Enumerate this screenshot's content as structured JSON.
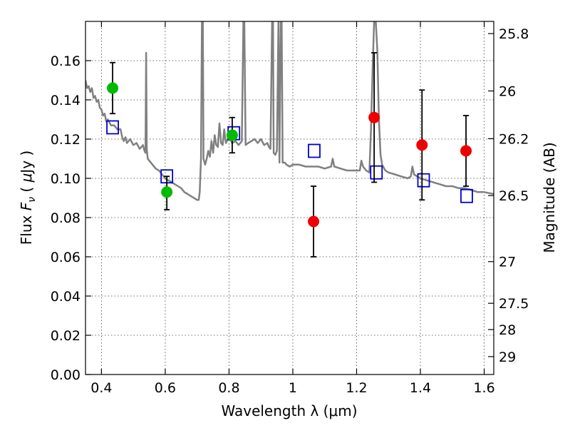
{
  "chart_data": {
    "type": "scatter",
    "xlabel": "Wavelength  λ (μm)",
    "ylabel": "Flux  F_ν  ( μJy )",
    "y2label": "Magnitude (AB)",
    "xlim": [
      0.35,
      1.63
    ],
    "ylim": [
      0.0,
      0.18
    ],
    "x_ticks": [
      0.4,
      0.6,
      0.8,
      1.0,
      1.2,
      1.4,
      1.6
    ],
    "x_tick_labels": [
      "0.4",
      "0.6",
      "0.8",
      "1",
      "1.2",
      "1.4",
      "1.6"
    ],
    "y_ticks": [
      0.0,
      0.02,
      0.04,
      0.06,
      0.08,
      0.1,
      0.12,
      0.14,
      0.16
    ],
    "y_tick_labels": [
      "0.00",
      "0.02",
      "0.04",
      "0.06",
      "0.08",
      "0.10",
      "0.12",
      "0.14",
      "0.16"
    ],
    "y2_ticks": [
      25.8,
      26,
      26.2,
      26.5,
      27,
      27.5,
      28,
      29
    ],
    "y2_tick_labels": [
      "25.8",
      "26",
      "26.2",
      "26.5",
      "27",
      "27.5",
      "28",
      "29"
    ],
    "grid": true,
    "colors": {
      "spectrum": "#808080",
      "model_box": "#0000cc",
      "optical_obs": "#00bb00",
      "nir_obs": "#ee0000",
      "errorbar": "#000000"
    },
    "series": [
      {
        "kind": "line",
        "color": "#808080",
        "points": [
          [
            0.35,
            0.15
          ],
          [
            0.355,
            0.146
          ],
          [
            0.36,
            0.147
          ],
          [
            0.365,
            0.144
          ],
          [
            0.37,
            0.146
          ],
          [
            0.375,
            0.141
          ],
          [
            0.38,
            0.142
          ],
          [
            0.385,
            0.139
          ],
          [
            0.39,
            0.14
          ],
          [
            0.395,
            0.136
          ],
          [
            0.4,
            0.135
          ],
          [
            0.405,
            0.132
          ],
          [
            0.41,
            0.133
          ],
          [
            0.415,
            0.129
          ],
          [
            0.42,
            0.13
          ],
          [
            0.43,
            0.127
          ],
          [
            0.44,
            0.127
          ],
          [
            0.45,
            0.125
          ],
          [
            0.46,
            0.125
          ],
          [
            0.465,
            0.121
          ],
          [
            0.47,
            0.119
          ],
          [
            0.475,
            0.121
          ],
          [
            0.48,
            0.118
          ],
          [
            0.49,
            0.12
          ],
          [
            0.5,
            0.117
          ],
          [
            0.51,
            0.118
          ],
          [
            0.52,
            0.115
          ],
          [
            0.53,
            0.117
          ],
          [
            0.535,
            0.114
          ],
          [
            0.538,
            0.113
          ],
          [
            0.54,
            0.164
          ],
          [
            0.542,
            0.115
          ],
          [
            0.545,
            0.11
          ],
          [
            0.55,
            0.109
          ],
          [
            0.56,
            0.107
          ],
          [
            0.57,
            0.105
          ],
          [
            0.58,
            0.104
          ],
          [
            0.59,
            0.102
          ],
          [
            0.6,
            0.1
          ],
          [
            0.61,
            0.099
          ],
          [
            0.62,
            0.098
          ],
          [
            0.63,
            0.097
          ],
          [
            0.64,
            0.096
          ],
          [
            0.65,
            0.095
          ],
          [
            0.66,
            0.093
          ],
          [
            0.67,
            0.092
          ],
          [
            0.68,
            0.091
          ],
          [
            0.69,
            0.09
          ],
          [
            0.7,
            0.089
          ],
          [
            0.705,
            0.089
          ],
          [
            0.708,
            0.093
          ],
          [
            0.712,
            0.11
          ],
          [
            0.715,
            0.18
          ],
          [
            0.718,
            0.18
          ],
          [
            0.72,
            0.11
          ],
          [
            0.725,
            0.107
          ],
          [
            0.73,
            0.11
          ],
          [
            0.735,
            0.114
          ],
          [
            0.74,
            0.111
          ],
          [
            0.745,
            0.119
          ],
          [
            0.75,
            0.113
          ],
          [
            0.755,
            0.122
          ],
          [
            0.76,
            0.117
          ],
          [
            0.765,
            0.116
          ],
          [
            0.77,
            0.128
          ],
          [
            0.775,
            0.118
          ],
          [
            0.78,
            0.117
          ],
          [
            0.785,
            0.125
          ],
          [
            0.79,
            0.118
          ],
          [
            0.8,
            0.121
          ],
          [
            0.81,
            0.118
          ],
          [
            0.82,
            0.119
          ],
          [
            0.83,
            0.117
          ],
          [
            0.84,
            0.119
          ],
          [
            0.845,
            0.18
          ],
          [
            0.848,
            0.18
          ],
          [
            0.852,
            0.117
          ],
          [
            0.86,
            0.118
          ],
          [
            0.87,
            0.119
          ],
          [
            0.88,
            0.12
          ],
          [
            0.89,
            0.118
          ],
          [
            0.9,
            0.12
          ],
          [
            0.91,
            0.117
          ],
          [
            0.92,
            0.118
          ],
          [
            0.925,
            0.116
          ],
          [
            0.93,
            0.115
          ],
          [
            0.935,
            0.18
          ],
          [
            0.938,
            0.18
          ],
          [
            0.94,
            0.113
          ],
          [
            0.945,
            0.112
          ],
          [
            0.95,
            0.114
          ],
          [
            0.955,
            0.18
          ],
          [
            0.958,
            0.108
          ],
          [
            0.962,
            0.18
          ],
          [
            0.965,
            0.18
          ],
          [
            0.968,
            0.108
          ],
          [
            0.975,
            0.108
          ],
          [
            0.98,
            0.107
          ],
          [
            0.99,
            0.106
          ],
          [
            1.0,
            0.107
          ],
          [
            1.02,
            0.107
          ],
          [
            1.04,
            0.106
          ],
          [
            1.06,
            0.106
          ],
          [
            1.08,
            0.106
          ],
          [
            1.1,
            0.105
          ],
          [
            1.12,
            0.106
          ],
          [
            1.125,
            0.11
          ],
          [
            1.13,
            0.106
          ],
          [
            1.15,
            0.105
          ],
          [
            1.17,
            0.104
          ],
          [
            1.19,
            0.104
          ],
          [
            1.21,
            0.104
          ],
          [
            1.215,
            0.109
          ],
          [
            1.22,
            0.106
          ],
          [
            1.23,
            0.104
          ],
          [
            1.24,
            0.103
          ],
          [
            1.245,
            0.125
          ],
          [
            1.25,
            0.155
          ],
          [
            1.255,
            0.18
          ],
          [
            1.26,
            0.18
          ],
          [
            1.265,
            0.165
          ],
          [
            1.27,
            0.13
          ],
          [
            1.275,
            0.112
          ],
          [
            1.28,
            0.107
          ],
          [
            1.29,
            0.104
          ],
          [
            1.3,
            0.103
          ],
          [
            1.32,
            0.102
          ],
          [
            1.34,
            0.101
          ],
          [
            1.36,
            0.1
          ],
          [
            1.37,
            0.101
          ],
          [
            1.375,
            0.106
          ],
          [
            1.38,
            0.102
          ],
          [
            1.4,
            0.1
          ],
          [
            1.42,
            0.099
          ],
          [
            1.44,
            0.098
          ],
          [
            1.46,
            0.097
          ],
          [
            1.48,
            0.096
          ],
          [
            1.5,
            0.096
          ],
          [
            1.52,
            0.095
          ],
          [
            1.54,
            0.095
          ],
          [
            1.56,
            0.094
          ],
          [
            1.58,
            0.093
          ],
          [
            1.6,
            0.093
          ],
          [
            1.63,
            0.092
          ]
        ]
      },
      {
        "kind": "open-square",
        "color": "#0000cc",
        "x": [
          0.435,
          0.605,
          0.815,
          1.067,
          1.262,
          1.41,
          1.545
        ],
        "y": [
          0.126,
          0.101,
          0.123,
          0.114,
          0.103,
          0.099,
          0.091
        ]
      },
      {
        "kind": "filled-circle-errorbar",
        "color": "#00bb00",
        "x": [
          0.435,
          0.605,
          0.81
        ],
        "y": [
          0.146,
          0.093,
          0.122
        ],
        "yerr_low": [
          0.133,
          0.084,
          0.113
        ],
        "yerr_high": [
          0.159,
          0.101,
          0.131
        ]
      },
      {
        "kind": "filled-circle-errorbar",
        "color": "#ee0000",
        "x": [
          1.065,
          1.255,
          1.405,
          1.543
        ],
        "y": [
          0.078,
          0.131,
          0.117,
          0.114
        ],
        "yerr_low": [
          0.06,
          0.098,
          0.089,
          0.096
        ],
        "yerr_high": [
          0.096,
          0.164,
          0.145,
          0.132
        ]
      }
    ]
  }
}
